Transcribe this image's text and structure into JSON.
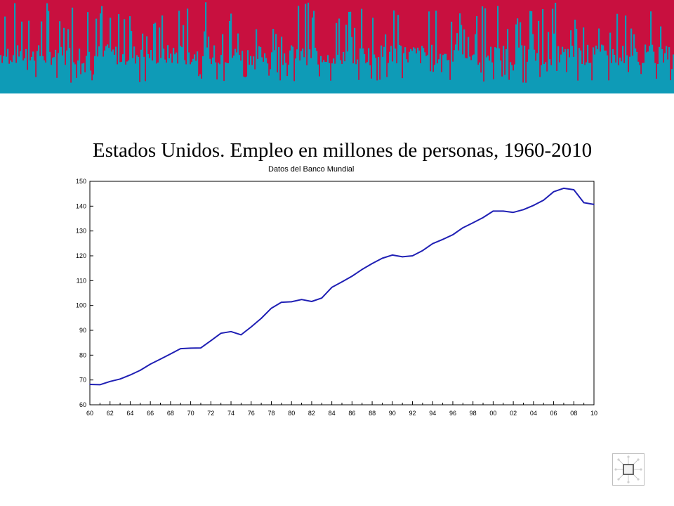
{
  "banner": {
    "top_color": "#c8103f",
    "bottom_color": "#0e9bb7"
  },
  "chart_data": {
    "type": "line",
    "title": "Estados Unidos. Empleo en millones de personas, 1960-2010",
    "subtitle": "Datos del Banco Mundial",
    "xlabel": "",
    "ylabel": "",
    "xlim": [
      1960,
      2010
    ],
    "ylim": [
      60,
      150
    ],
    "yticks": [
      60,
      70,
      80,
      90,
      100,
      110,
      120,
      130,
      140,
      150
    ],
    "xtick_labels": [
      "60",
      "62",
      "64",
      "66",
      "68",
      "70",
      "72",
      "74",
      "76",
      "78",
      "80",
      "82",
      "84",
      "86",
      "88",
      "90",
      "92",
      "94",
      "96",
      "98",
      "00",
      "02",
      "04",
      "06",
      "08",
      "10"
    ],
    "grid": false,
    "line_color": "#1f1fb4",
    "series": [
      {
        "x": [
          1960,
          1961,
          1962,
          1963,
          1964,
          1965,
          1966,
          1967,
          1968,
          1969,
          1970,
          1971,
          1972,
          1973,
          1974,
          1975,
          1976,
          1977,
          1978,
          1979,
          1980,
          1981,
          1982,
          1983,
          1984,
          1985,
          1986,
          1987,
          1988,
          1989,
          1990,
          1991,
          1992,
          1993,
          1994,
          1995,
          1996,
          1997,
          1998,
          1999,
          2000,
          2001,
          2002,
          2003,
          2004,
          2005,
          2006,
          2007,
          2008,
          2009,
          2010
        ],
        "values": [
          68.2,
          68.1,
          69.4,
          70.4,
          72.0,
          73.9,
          76.4,
          78.4,
          80.5,
          82.6,
          82.8,
          82.9,
          85.8,
          88.8,
          89.5,
          88.2,
          91.4,
          94.8,
          98.9,
          101.3,
          101.5,
          102.4,
          101.6,
          103.0,
          107.3,
          109.5,
          111.8,
          114.5,
          116.9,
          119.0,
          120.3,
          119.6,
          120.0,
          122.1,
          124.9,
          126.6,
          128.5,
          131.3,
          133.3,
          135.4,
          138.0,
          138.0,
          137.5,
          138.6,
          140.3,
          142.4,
          145.8,
          147.2,
          146.6,
          141.4,
          140.7
        ]
      }
    ]
  },
  "logo": {
    "name": "network-logo-icon"
  }
}
